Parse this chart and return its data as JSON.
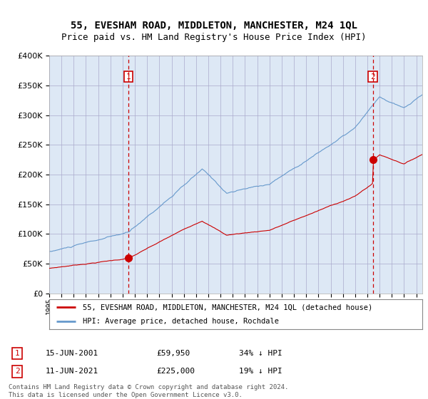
{
  "title": "55, EVESHAM ROAD, MIDDLETON, MANCHESTER, M24 1QL",
  "subtitle": "Price paid vs. HM Land Registry's House Price Index (HPI)",
  "legend_label_red": "55, EVESHAM ROAD, MIDDLETON, MANCHESTER, M24 1QL (detached house)",
  "legend_label_blue": "HPI: Average price, detached house, Rochdale",
  "annotation1_label": "1",
  "annotation1_date": "15-JUN-2001",
  "annotation1_price": "£59,950",
  "annotation1_hpi": "34% ↓ HPI",
  "annotation2_label": "2",
  "annotation2_date": "11-JUN-2021",
  "annotation2_price": "£225,000",
  "annotation2_hpi": "19% ↓ HPI",
  "footer": "Contains HM Land Registry data © Crown copyright and database right 2024.\nThis data is licensed under the Open Government Licence v3.0.",
  "sale1_year": 2001.46,
  "sale1_value": 59950,
  "sale2_year": 2021.44,
  "sale2_value": 225000,
  "red_color": "#cc0000",
  "blue_color": "#6699cc",
  "vline_color": "#cc0000",
  "grid_color": "#aaaacc",
  "plot_bg_color": "#dde8f5",
  "background_color": "#ffffff",
  "ylim_min": 0,
  "ylim_max": 400000,
  "title_fontsize": 10,
  "subtitle_fontsize": 9
}
